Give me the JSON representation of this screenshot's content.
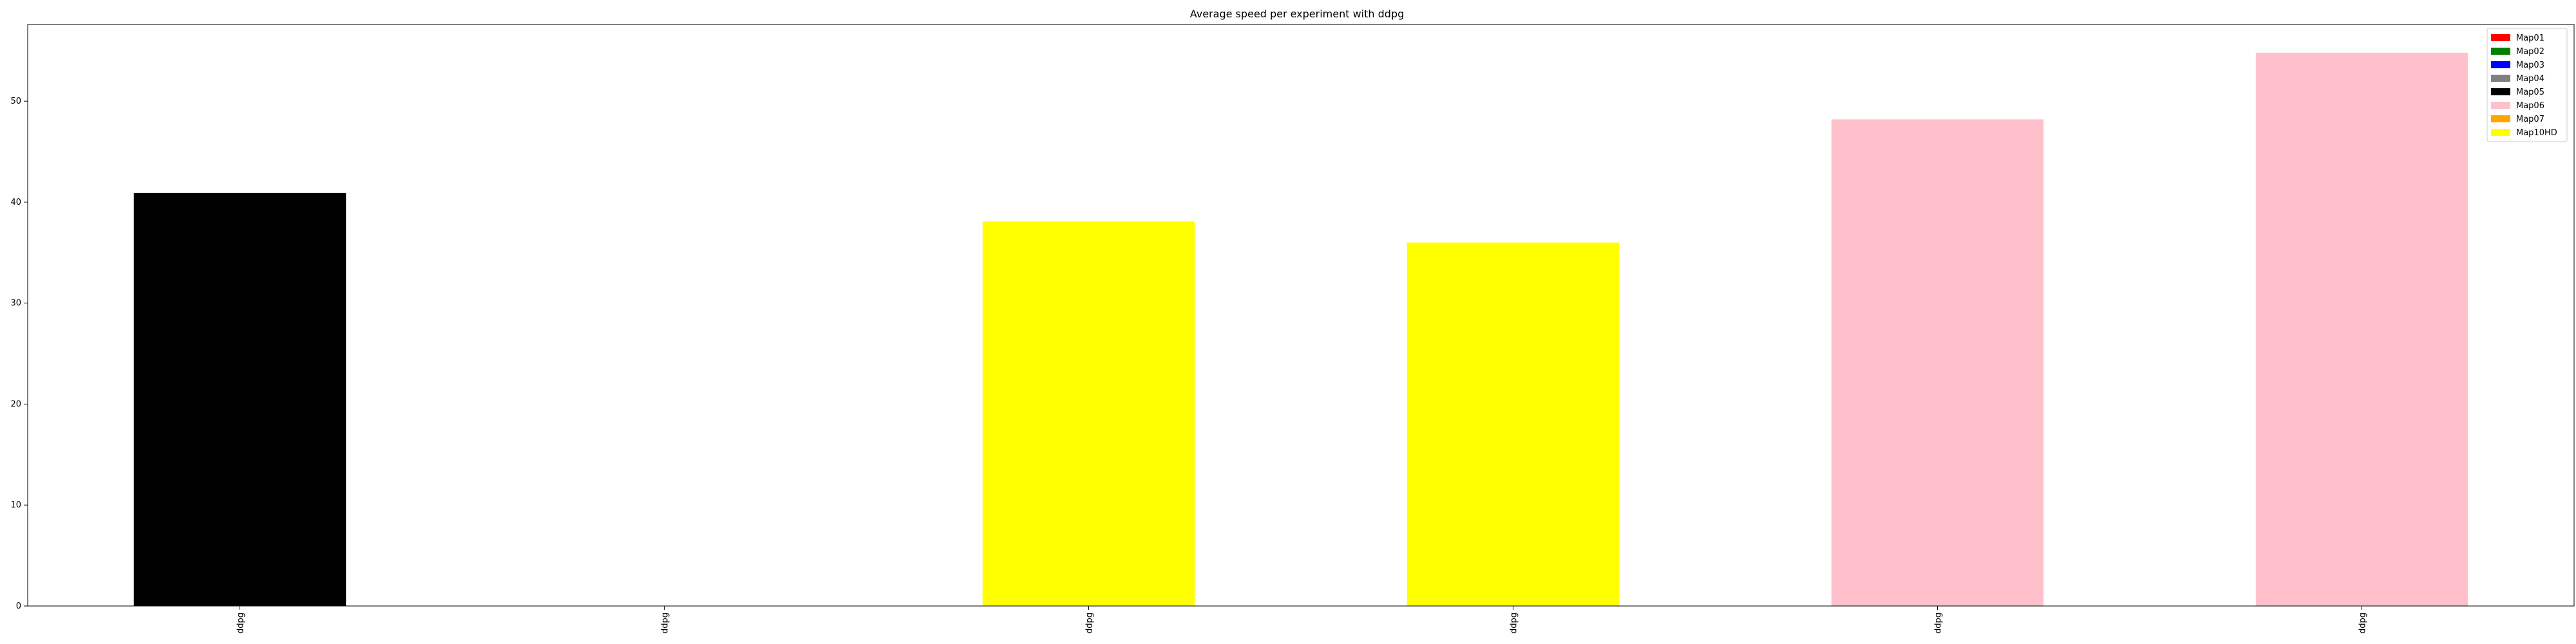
{
  "chart_data": {
    "type": "bar",
    "title": "Average speed per experiment with ddpg",
    "xlabel": "",
    "ylabel": "",
    "categories": [
      "ddpg",
      "ddpg",
      "ddpg",
      "ddpg",
      "ddpg",
      "ddpg"
    ],
    "values": [
      40.9,
      0,
      38.1,
      36.0,
      48.2,
      54.8
    ],
    "bar_colors": [
      "#000000",
      "#ffffff",
      "#ffff00",
      "#ffff00",
      "#ffc0cb",
      "#ffc0cb"
    ],
    "ylim": [
      0,
      57.6
    ],
    "yticks": [
      0,
      10,
      20,
      30,
      40,
      50
    ],
    "grid": false,
    "legend_position": "top-right",
    "legend": [
      {
        "label": "Map01",
        "color": "#ff0000"
      },
      {
        "label": "Map02",
        "color": "#008000"
      },
      {
        "label": "Map03",
        "color": "#0000ff"
      },
      {
        "label": "Map04",
        "color": "#808080"
      },
      {
        "label": "Map05",
        "color": "#000000"
      },
      {
        "label": "Map06",
        "color": "#ffc0cb"
      },
      {
        "label": "Map07",
        "color": "#ffa500"
      },
      {
        "label": "Map10HD",
        "color": "#ffff00"
      }
    ]
  }
}
